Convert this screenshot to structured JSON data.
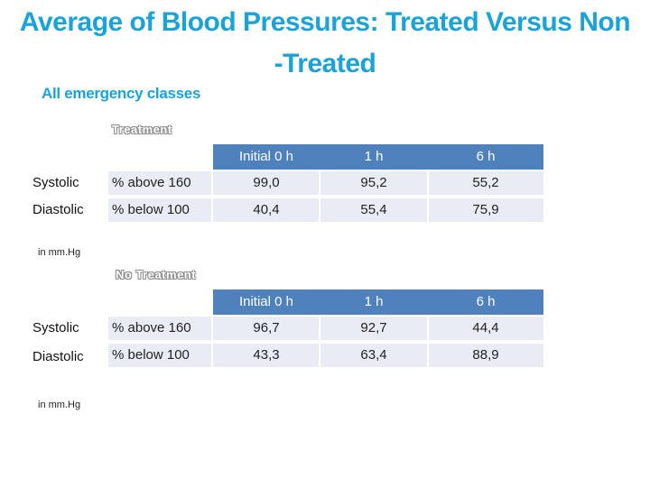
{
  "title_line1": "Average of Blood Pressures: Treated Versus Non",
  "title_line2": "-Treated",
  "subtitle": "All emergency classes",
  "sections": [
    {
      "label": "Treatment",
      "columns": [
        "Initial 0 h",
        "1 h",
        "6 h"
      ],
      "rows": [
        {
          "label": "Systolic",
          "measure": "% above 160",
          "values": [
            "99,0",
            "95,2",
            "55,2"
          ]
        },
        {
          "label": "Diastolic",
          "measure": "% below 100",
          "values": [
            "40,4",
            "55,4",
            "75,9"
          ]
        }
      ],
      "unit": "in mm.Hg"
    },
    {
      "label": "No Treatment",
      "columns": [
        "Initial 0 h",
        "1 h",
        "6 h"
      ],
      "rows": [
        {
          "label": "Systolic",
          "measure": "% above 160",
          "values": [
            "96,7",
            "92,7",
            "44,4"
          ]
        },
        {
          "label": "Diastolic",
          "measure": "% below 100",
          "values": [
            "43,3",
            "63,4",
            "88,9"
          ]
        }
      ],
      "unit": "in mm.Hg"
    }
  ]
}
